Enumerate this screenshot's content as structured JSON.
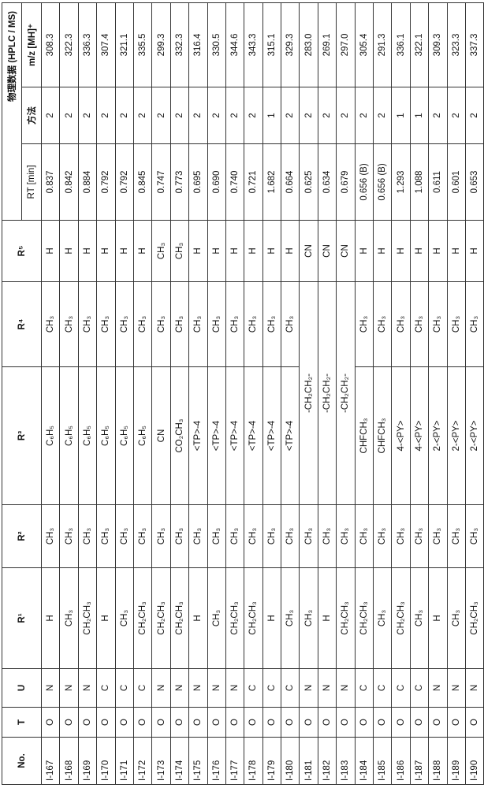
{
  "table": {
    "headers": {
      "no": "No.",
      "t": "T",
      "u": "U",
      "r1": "R¹",
      "r2": "R²",
      "r3": "R³",
      "r4": "R⁴",
      "r5": "R⁵",
      "group": "物理数据  (HPLC / MS)",
      "rt": "RT [min]",
      "method": "方法",
      "mz": "m/z [MH]⁺"
    },
    "rows": [
      {
        "no": "I-167",
        "t": "O",
        "u": "N",
        "r1": "H",
        "r2": "CH₃",
        "r3": "C₆H₅",
        "r4": "CH₃",
        "r5": "H",
        "rt": "0.837",
        "method": "2",
        "mz": "308.3"
      },
      {
        "no": "I-168",
        "t": "O",
        "u": "N",
        "r1": "CH₃",
        "r2": "CH₃",
        "r3": "C₆H₅",
        "r4": "CH₃",
        "r5": "H",
        "rt": "0.842",
        "method": "2",
        "mz": "322.3"
      },
      {
        "no": "I-169",
        "t": "O",
        "u": "N",
        "r1": "CH₂CH₃",
        "r2": "CH₃",
        "r3": "C₆H₅",
        "r4": "CH₃",
        "r5": "H",
        "rt": "0.884",
        "method": "2",
        "mz": "336.3"
      },
      {
        "no": "I-170",
        "t": "O",
        "u": "C",
        "r1": "H",
        "r2": "CH₃",
        "r3": "C₆H₅",
        "r4": "CH₃",
        "r5": "H",
        "rt": "0.792",
        "method": "2",
        "mz": "307.4"
      },
      {
        "no": "I-171",
        "t": "O",
        "u": "C",
        "r1": "CH₃",
        "r2": "CH₃",
        "r3": "C₆H₅",
        "r4": "CH₃",
        "r5": "H",
        "rt": "0.792",
        "method": "2",
        "mz": "321.1"
      },
      {
        "no": "I-172",
        "t": "O",
        "u": "C",
        "r1": "CH₂CH₃",
        "r2": "CH₃",
        "r3": "C₆H₅",
        "r4": "CH₃",
        "r5": "H",
        "rt": "0.845",
        "method": "2",
        "mz": "335.5"
      },
      {
        "no": "I-173",
        "t": "O",
        "u": "N",
        "r1": "CH₂CH₃",
        "r2": "CH₃",
        "r3": "CN",
        "r4": "CH₃",
        "r5": "CH₃",
        "rt": "0.747",
        "method": "2",
        "mz": "299.3"
      },
      {
        "no": "I-174",
        "t": "O",
        "u": "N",
        "r1": "CH₂CH₃",
        "r2": "CH₃",
        "r3": "CO₂CH₃",
        "r4": "CH₃",
        "r5": "CH₃",
        "rt": "0.773",
        "method": "2",
        "mz": "332.3"
      },
      {
        "no": "I-175",
        "t": "O",
        "u": "N",
        "r1": "H",
        "r2": "CH₃",
        "r3": "<TP>-4",
        "r4": "CH₃",
        "r5": "H",
        "rt": "0.695",
        "method": "2",
        "mz": "316.4"
      },
      {
        "no": "I-176",
        "t": "O",
        "u": "N",
        "r1": "CH₃",
        "r2": "CH₃",
        "r3": "<TP>-4",
        "r4": "CH₃",
        "r5": "H",
        "rt": "0.690",
        "method": "2",
        "mz": "330.5"
      },
      {
        "no": "I-177",
        "t": "O",
        "u": "N",
        "r1": "CH₂CH₃",
        "r2": "CH₃",
        "r3": "<TP>-4",
        "r4": "CH₃",
        "r5": "H",
        "rt": "0.740",
        "method": "2",
        "mz": "344.6"
      },
      {
        "no": "I-178",
        "t": "O",
        "u": "C",
        "r1": "CH₂CH₃",
        "r2": "CH₃",
        "r3": "<TP>-4",
        "r4": "CH₃",
        "r5": "H",
        "rt": "0.721",
        "method": "2",
        "mz": "343.3"
      },
      {
        "no": "I-179",
        "t": "O",
        "u": "C",
        "r1": "H",
        "r2": "CH₃",
        "r3": "<TP>-4",
        "r4": "CH₃",
        "r5": "H",
        "rt": "1.682",
        "method": "1",
        "mz": "315.1"
      },
      {
        "no": "I-180",
        "t": "O",
        "u": "C",
        "r1": "CH₃",
        "r2": "CH₃",
        "r3": "<TP>-4",
        "r4": "CH₃",
        "r5": "H",
        "rt": "0.664",
        "method": "2",
        "mz": "329.3"
      },
      {
        "no": "I-181",
        "t": "O",
        "u": "N",
        "r1": "CH₃",
        "r2": "CH₃",
        "r34": "-CH₂CH₂-",
        "r5": "CN",
        "rt": "0.625",
        "method": "2",
        "mz": "283.0"
      },
      {
        "no": "I-182",
        "t": "O",
        "u": "N",
        "r1": "H",
        "r2": "CH₃",
        "r34": "-CH₂CH₂-",
        "r5": "CN",
        "rt": "0.634",
        "method": "2",
        "mz": "269.1"
      },
      {
        "no": "I-183",
        "t": "O",
        "u": "N",
        "r1": "CH₂CH₃",
        "r2": "CH₃",
        "r34": "-CH₂CH₂-",
        "r5": "CN",
        "rt": "0.679",
        "method": "2",
        "mz": "297.0"
      },
      {
        "no": "I-184",
        "t": "O",
        "u": "C",
        "r1": "CH₂CH₃",
        "r2": "CH₃",
        "r3": "CHFCH₃",
        "r4": "CH₃",
        "r5": "H",
        "rt": "0.656 (B)",
        "method": "2",
        "mz": "305.4"
      },
      {
        "no": "I-185",
        "t": "O",
        "u": "C",
        "r1": "CH₃",
        "r2": "CH₃",
        "r3": "CHFCH₃",
        "r4": "CH₃",
        "r5": "H",
        "rt": "0.656 (B)",
        "method": "2",
        "mz": "291.3"
      },
      {
        "no": "I-186",
        "t": "O",
        "u": "C",
        "r1": "CH₂CH₃",
        "r2": "CH₃",
        "r3": "4-<PY>",
        "r4": "CH₃",
        "r5": "H",
        "rt": "1.293",
        "method": "1",
        "mz": "336.1"
      },
      {
        "no": "I-187",
        "t": "O",
        "u": "C",
        "r1": "CH₃",
        "r2": "CH₃",
        "r3": "4-<PY>",
        "r4": "CH₃",
        "r5": "H",
        "rt": "1.088",
        "method": "1",
        "mz": "322.1"
      },
      {
        "no": "I-188",
        "t": "O",
        "u": "N",
        "r1": "H",
        "r2": "CH₃",
        "r3": "2-<PY>",
        "r4": "CH₃",
        "r5": "H",
        "rt": "0.611",
        "method": "2",
        "mz": "309.3"
      },
      {
        "no": "I-189",
        "t": "O",
        "u": "N",
        "r1": "CH₃",
        "r2": "CH₃",
        "r3": "2-<PY>",
        "r4": "CH₃",
        "r5": "H",
        "rt": "0.601",
        "method": "2",
        "mz": "323.3"
      },
      {
        "no": "I-190",
        "t": "O",
        "u": "N",
        "r1": "CH₂CH₃",
        "r2": "CH₃",
        "r3": "2-<PY>",
        "r4": "CH₃",
        "r5": "H",
        "rt": "0.653",
        "method": "2",
        "mz": "337.3"
      }
    ]
  }
}
